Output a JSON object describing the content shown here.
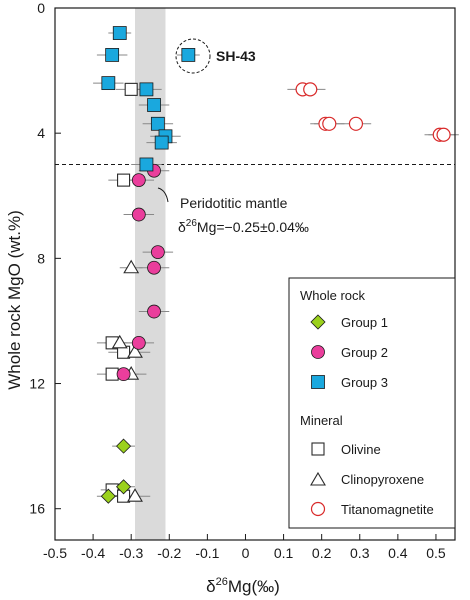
{
  "chart_data": {
    "type": "scatter",
    "xlabel_main": "δ",
    "xlabel_sup": "26",
    "xlabel_rest": "Mg(‰)",
    "ylabel": "Whole rock MgO (wt.%)",
    "xlim": [
      -0.5,
      0.55
    ],
    "ylim": [
      0,
      17
    ],
    "y_inverted": true,
    "x_ticks": [
      "-0.5",
      "-0.4",
      "-0.3",
      "-0.2",
      "-0.1",
      "0",
      "0.1",
      "0.2",
      "0.3",
      "0.4",
      "0.5"
    ],
    "x_tick_values": [
      -0.5,
      -0.4,
      -0.3,
      -0.2,
      -0.1,
      0,
      0.1,
      0.2,
      0.3,
      0.4,
      0.5
    ],
    "y_ticks": [
      "0",
      "4",
      "8",
      "12",
      "16"
    ],
    "y_tick_values": [
      0,
      4,
      8,
      12,
      16
    ],
    "mantle_band": {
      "low": -0.29,
      "high": -0.21
    },
    "dashed_line_y": 5.0,
    "annotations": {
      "sample_label": "SH-43",
      "mantle_label": "Peridotitic mantle",
      "mantle_value_delta": "δ",
      "mantle_value_sup": "26",
      "mantle_value_rest": "Mg=−0.25±0.04‰"
    },
    "legend": {
      "whole_rock_title": "Whole rock",
      "group1": "Group 1",
      "group2": "Group 2",
      "group3": "Group 3",
      "mineral_title": "Mineral",
      "olivine": "Olivine",
      "clinopyroxene": "Clinopyroxene",
      "titanomagnetite": "Titanomagnetite"
    },
    "series": [
      {
        "name": "Group 1",
        "marker": "diamond",
        "color": "#9bd11c",
        "points": [
          {
            "x": -0.32,
            "y": 14.0,
            "err": 0.03
          },
          {
            "x": -0.32,
            "y": 15.3,
            "err": 0.03
          },
          {
            "x": -0.36,
            "y": 15.6,
            "err": 0.03
          }
        ]
      },
      {
        "name": "Group 2",
        "marker": "circle",
        "color": "#ea3e9c",
        "points": [
          {
            "x": -0.24,
            "y": 5.2,
            "err": 0.04
          },
          {
            "x": -0.28,
            "y": 5.5,
            "err": 0.04
          },
          {
            "x": -0.28,
            "y": 6.6,
            "err": 0.04
          },
          {
            "x": -0.23,
            "y": 7.8,
            "err": 0.04
          },
          {
            "x": -0.24,
            "y": 8.3,
            "err": 0.04
          },
          {
            "x": -0.24,
            "y": 9.7,
            "err": 0.04
          },
          {
            "x": -0.28,
            "y": 10.7,
            "err": 0.04
          },
          {
            "x": -0.32,
            "y": 11.7,
            "err": 0.04
          }
        ]
      },
      {
        "name": "Group 3",
        "marker": "square",
        "color": "#1aa8de",
        "points": [
          {
            "x": -0.33,
            "y": 0.8,
            "err": 0.03
          },
          {
            "x": -0.35,
            "y": 1.5,
            "err": 0.04
          },
          {
            "x": -0.15,
            "y": 1.5,
            "err": 0.03
          },
          {
            "x": -0.36,
            "y": 2.4,
            "err": 0.04
          },
          {
            "x": -0.26,
            "y": 2.6,
            "err": 0.04
          },
          {
            "x": -0.24,
            "y": 3.1,
            "err": 0.04
          },
          {
            "x": -0.23,
            "y": 3.7,
            "err": 0.04
          },
          {
            "x": -0.21,
            "y": 4.1,
            "err": 0.04
          },
          {
            "x": -0.22,
            "y": 4.3,
            "err": 0.04
          },
          {
            "x": -0.26,
            "y": 5.0,
            "err": 0.04
          }
        ]
      },
      {
        "name": "Olivine",
        "marker": "open-square",
        "color": "#2a2a2a",
        "points": [
          {
            "x": -0.3,
            "y": 2.6,
            "err": 0.04
          },
          {
            "x": -0.32,
            "y": 5.5,
            "err": 0.04
          },
          {
            "x": -0.35,
            "y": 10.7,
            "err": 0.04
          },
          {
            "x": -0.32,
            "y": 11.0,
            "err": 0.04
          },
          {
            "x": -0.35,
            "y": 11.7,
            "err": 0.04
          },
          {
            "x": -0.35,
            "y": 15.4,
            "err": 0.03
          },
          {
            "x": -0.32,
            "y": 15.6,
            "err": 0.03
          }
        ]
      },
      {
        "name": "Clinopyroxene",
        "marker": "open-triangle",
        "color": "#2a2a2a",
        "points": [
          {
            "x": -0.3,
            "y": 8.3,
            "err": 0.03
          },
          {
            "x": -0.33,
            "y": 10.7,
            "err": 0.04
          },
          {
            "x": -0.29,
            "y": 11.0,
            "err": 0.04
          },
          {
            "x": -0.3,
            "y": 11.7,
            "err": 0.04
          },
          {
            "x": -0.29,
            "y": 15.6,
            "err": 0.04
          }
        ]
      },
      {
        "name": "Titanomagnetite",
        "marker": "open-circle",
        "color": "#d92a2a",
        "points": [
          {
            "x": 0.15,
            "y": 2.6,
            "err": 0.04
          },
          {
            "x": 0.17,
            "y": 2.6,
            "err": 0.04
          },
          {
            "x": 0.21,
            "y": 3.7,
            "err": 0.04
          },
          {
            "x": 0.22,
            "y": 3.7,
            "err": 0.04
          },
          {
            "x": 0.29,
            "y": 3.7,
            "err": 0.04
          },
          {
            "x": 0.51,
            "y": 4.05,
            "err": 0.04
          },
          {
            "x": 0.52,
            "y": 4.05,
            "err": 0.04
          }
        ]
      }
    ]
  }
}
